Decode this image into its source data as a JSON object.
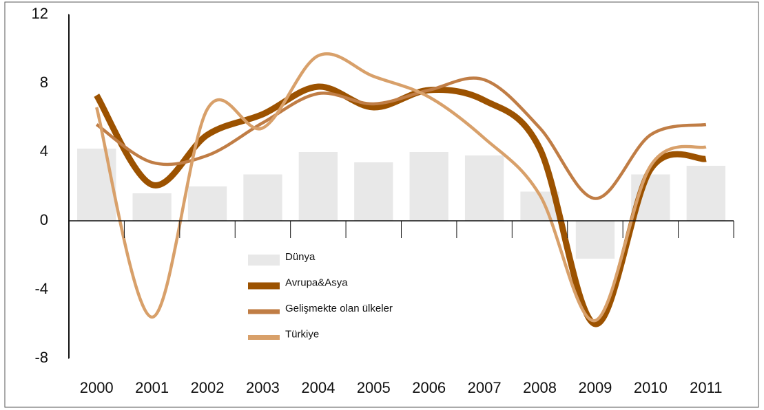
{
  "chart_data": {
    "type": "bar-line",
    "categories": [
      "2000",
      "2001",
      "2002",
      "2003",
      "2004",
      "2005",
      "2006",
      "2007",
      "2008",
      "2009",
      "2010",
      "2011"
    ],
    "ylim": [
      -8,
      12
    ],
    "yticks": [
      12,
      8,
      4,
      0,
      -4,
      -8
    ],
    "series": [
      {
        "name": "Dünya",
        "type": "bar",
        "color": "#e8e8e8",
        "values": [
          4.2,
          1.6,
          2.0,
          2.7,
          4.0,
          3.4,
          4.0,
          3.8,
          1.7,
          -2.2,
          2.7,
          3.2
        ]
      },
      {
        "name": "Avrupa&Asya",
        "type": "line",
        "color": "#9c5200",
        "values": [
          7.3,
          2.1,
          5.0,
          6.2,
          7.8,
          6.6,
          7.6,
          7.0,
          4.2,
          -6.0,
          3.0,
          3.6
        ]
      },
      {
        "name": "Gelişmekte olan ülkeler",
        "type": "line",
        "color": "#c07d45",
        "values": [
          5.6,
          3.4,
          3.8,
          5.7,
          7.4,
          6.8,
          7.6,
          8.2,
          5.4,
          1.3,
          5.0,
          5.6
        ]
      },
      {
        "name": "Türkiye",
        "type": "line",
        "color": "#d8a06a",
        "values": [
          6.6,
          -5.6,
          6.5,
          5.4,
          9.6,
          8.4,
          7.2,
          4.8,
          1.5,
          -5.8,
          3.2,
          4.3
        ]
      }
    ]
  }
}
